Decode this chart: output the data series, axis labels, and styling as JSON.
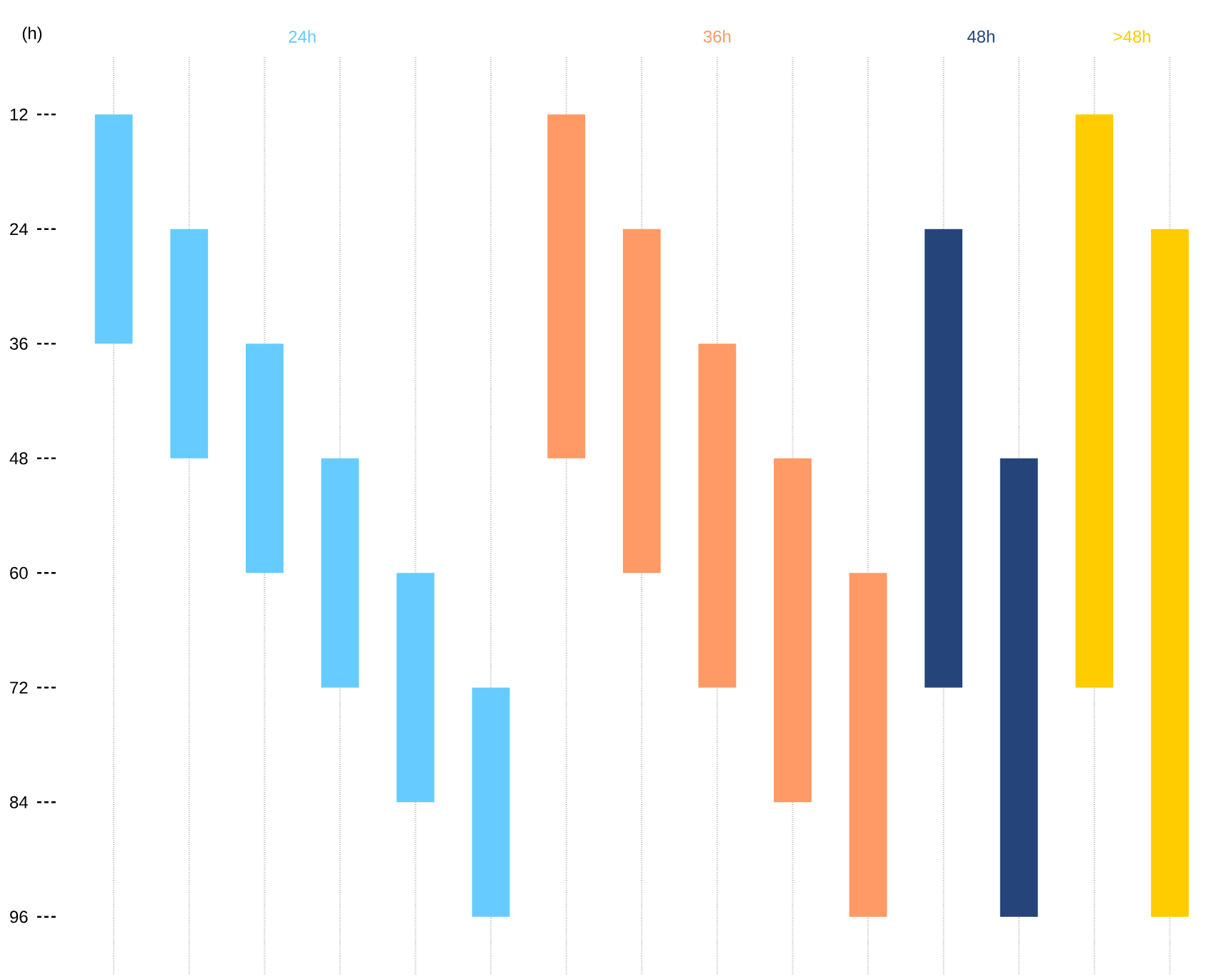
{
  "chart_data": {
    "type": "bar",
    "ylabel": "(h)",
    "categories": [
      null,
      null,
      null,
      null,
      null,
      null,
      null,
      null,
      null,
      null,
      null,
      null,
      null,
      null,
      null
    ],
    "base": [
      12,
      24,
      36,
      48,
      60,
      72,
      12,
      24,
      36,
      48,
      60,
      24,
      48,
      12,
      24
    ],
    "values": [
      24,
      24,
      24,
      24,
      24,
      24,
      36,
      36,
      36,
      36,
      36,
      48,
      48,
      60,
      72
    ],
    "colors": [
      "#66ccff",
      "#66ccff",
      "#66ccff",
      "#66ccff",
      "#66ccff",
      "#66ccff",
      "#ff9966",
      "#ff9966",
      "#ff9966",
      "#ff9966",
      "#ff9966",
      "#254479",
      "#254479",
      "#ffcc00",
      "#ffcc00"
    ],
    "annotations": [
      "24h",
      "36h",
      "48h",
      ">48h"
    ],
    "ylim": [
      102,
      6
    ],
    "yticks": [
      12,
      24,
      36,
      48,
      60,
      72,
      84,
      96
    ],
    "grid": "x",
    "tick_labels": "y"
  }
}
